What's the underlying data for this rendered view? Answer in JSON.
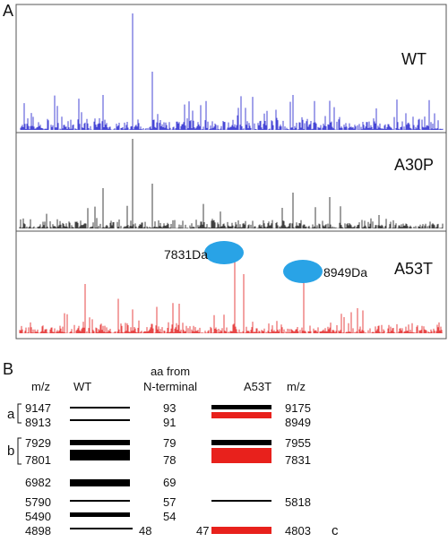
{
  "panel_a": {
    "label": "A",
    "spectra": [
      {
        "name": "WT"
      },
      {
        "name": "A30P"
      },
      {
        "name": "A53T",
        "annotations": [
          "7831Da",
          "8949Da"
        ]
      }
    ]
  },
  "panel_b": {
    "label": "B",
    "headers": {
      "wt_mz": "m/z",
      "wt": "WT",
      "aa": [
        "aa from",
        "N-terminal"
      ],
      "mutant": "A53T",
      "mutant_mz": "m/z"
    },
    "groups": [
      "a",
      "b",
      "c"
    ],
    "rows": [
      {
        "wt_mz": 9147,
        "aa": 93,
        "mutant_mz": 9175
      },
      {
        "wt_mz": 8913,
        "aa": 91,
        "mutant_mz": 8949
      },
      {
        "wt_mz": 7929,
        "aa": 79,
        "mutant_mz": 7955
      },
      {
        "wt_mz": 7801,
        "aa": 78,
        "mutant_mz": 7831
      },
      {
        "wt_mz": 6982,
        "aa": 69
      },
      {
        "wt_mz": 5790,
        "aa": 57,
        "mutant_mz": 5818
      },
      {
        "wt_mz": 5490,
        "aa": 54
      },
      {
        "wt_mz": 4898,
        "aa": 48,
        "mutant_aa": 47,
        "mutant_mz": 4803
      }
    ]
  }
}
